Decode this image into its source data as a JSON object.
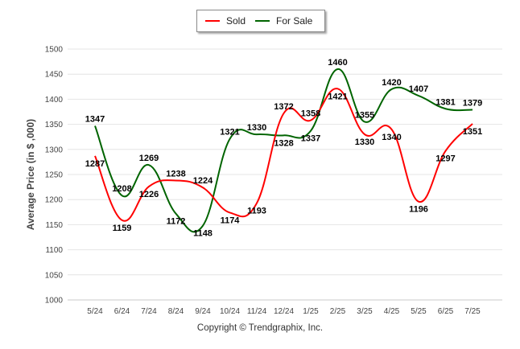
{
  "chart_data": {
    "type": "line",
    "categories": [
      "5/24",
      "6/24",
      "7/24",
      "8/24",
      "9/24",
      "10/24",
      "11/24",
      "12/24",
      "1/25",
      "2/25",
      "3/25",
      "4/25",
      "5/25",
      "6/25",
      "7/25"
    ],
    "series": [
      {
        "name": "Sold",
        "color": "#ff0000",
        "values": [
          1287,
          1159,
          1226,
          1238,
          1224,
          1174,
          1193,
          1372,
          1358,
          1421,
          1330,
          1340,
          1196,
          1297,
          1351
        ]
      },
      {
        "name": "For Sale",
        "color": "#006400",
        "values": [
          1347,
          1208,
          1269,
          1172,
          1148,
          1321,
          1330,
          1328,
          1337,
          1460,
          1355,
          1420,
          1407,
          1381,
          1379
        ]
      }
    ],
    "ylabel": "Average Price (in $ ,000)",
    "xlabel": "",
    "ylim": [
      1000,
      1500
    ],
    "yticks": [
      1000,
      1050,
      1100,
      1150,
      1200,
      1250,
      1300,
      1350,
      1400,
      1450,
      1500
    ],
    "grid": "horizontal",
    "legend_position": "top-center"
  },
  "footer": {
    "copyright": "Copyright © Trendgraphix, Inc."
  }
}
